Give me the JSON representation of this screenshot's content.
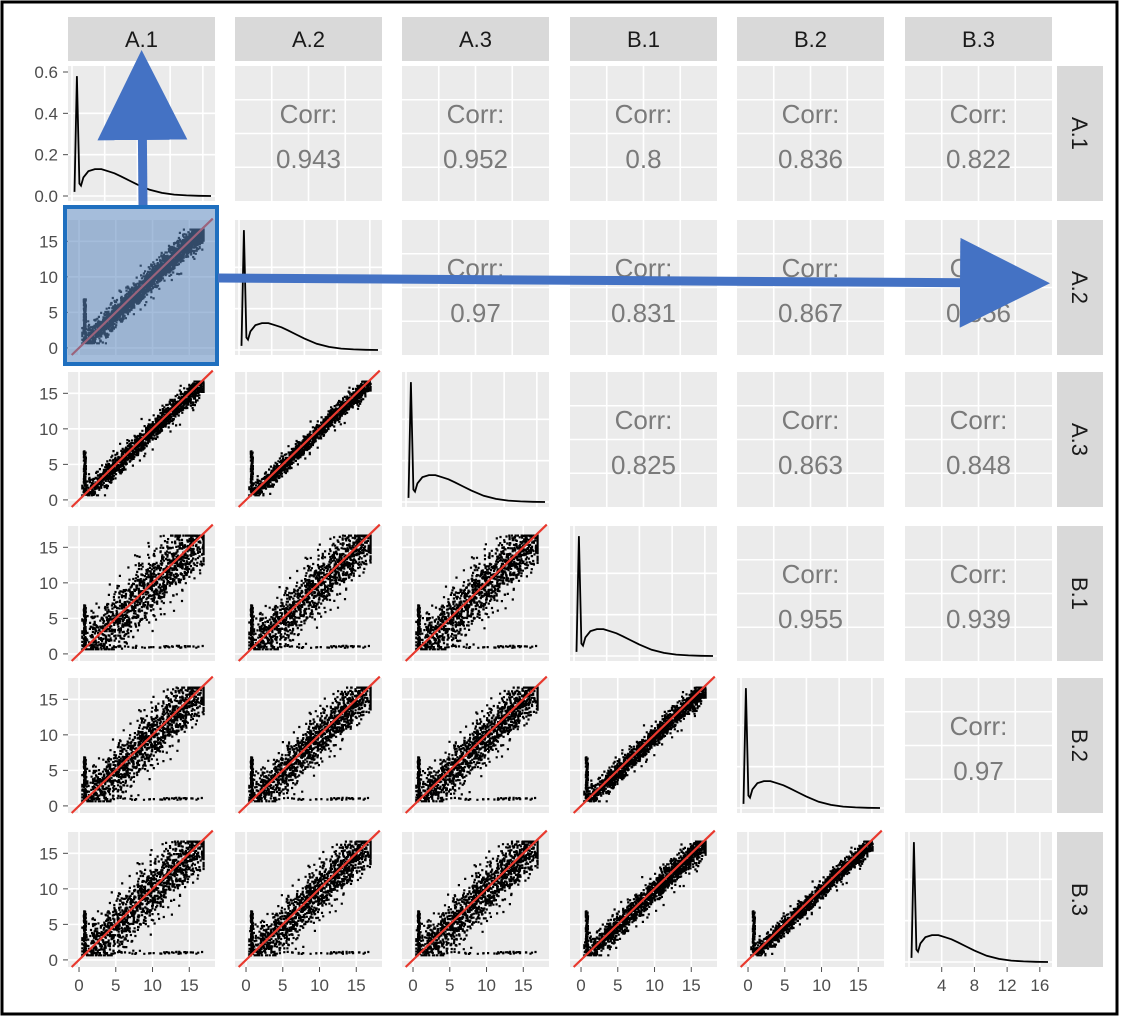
{
  "variables": [
    "A.1",
    "A.2",
    "A.3",
    "B.1",
    "B.2",
    "B.3"
  ],
  "corr_label": "Corr:",
  "colors": {
    "panel_bg": "#ebebeb",
    "grid": "#ffffff",
    "strip_bg": "#d9d9d9",
    "points": "#000000",
    "identity_line": "#e8392e",
    "corr_text": "#7a7a7a",
    "highlight_fill": "#5b86bd",
    "highlight_border": "#1f6fbf",
    "arrow": "#4472c4"
  },
  "chart_data": {
    "type": "scatter",
    "layout": "pairs-matrix",
    "variables": [
      "A.1",
      "A.2",
      "A.3",
      "B.1",
      "B.2",
      "B.3"
    ],
    "correlations": [
      {
        "row": "A.1",
        "col": "A.2",
        "value": "0.943"
      },
      {
        "row": "A.1",
        "col": "A.3",
        "value": "0.952"
      },
      {
        "row": "A.1",
        "col": "B.1",
        "value": "0.8"
      },
      {
        "row": "A.1",
        "col": "B.2",
        "value": "0.836"
      },
      {
        "row": "A.1",
        "col": "B.3",
        "value": "0.822"
      },
      {
        "row": "A.2",
        "col": "A.3",
        "value": "0.97"
      },
      {
        "row": "A.2",
        "col": "B.1",
        "value": "0.831"
      },
      {
        "row": "A.2",
        "col": "B.2",
        "value": "0.867"
      },
      {
        "row": "A.2",
        "col": "B.3",
        "value": "0.856"
      },
      {
        "row": "A.3",
        "col": "B.1",
        "value": "0.825"
      },
      {
        "row": "A.3",
        "col": "B.2",
        "value": "0.863"
      },
      {
        "row": "A.3",
        "col": "B.3",
        "value": "0.848"
      },
      {
        "row": "B.1",
        "col": "B.2",
        "value": "0.955"
      },
      {
        "row": "B.1",
        "col": "B.3",
        "value": "0.939"
      },
      {
        "row": "B.2",
        "col": "B.3",
        "value": "0.97"
      }
    ],
    "scatter_axis": {
      "xlim": [
        -1.5,
        18.5
      ],
      "ylim": [
        -1,
        18
      ],
      "ticks": [
        0,
        5,
        10,
        15
      ],
      "identity_line": true
    },
    "density_axis_first": {
      "ylim": [
        0,
        0.6
      ],
      "ticks": [
        "0.0",
        "0.2",
        "0.4",
        "0.6"
      ]
    },
    "last_diag_x_ticks": [
      "4",
      "8",
      "12",
      "16"
    ],
    "last_diag_xlim": [
      0,
      17
    ],
    "highlighted_panel": {
      "row": "A.2",
      "col": "A.1"
    },
    "density_curve": {
      "x": [
        0.3,
        0.6,
        0.9,
        1.1,
        1.4,
        2.0,
        2.8,
        3.6,
        4.4,
        5.2,
        6.0,
        7.0,
        8.0,
        9.5,
        11.0,
        12.5,
        14.0,
        15.5,
        17.0
      ],
      "y": [
        0.02,
        0.58,
        0.06,
        0.05,
        0.09,
        0.12,
        0.13,
        0.13,
        0.12,
        0.11,
        0.095,
        0.075,
        0.055,
        0.03,
        0.015,
        0.007,
        0.003,
        0.001,
        0.0
      ]
    }
  }
}
